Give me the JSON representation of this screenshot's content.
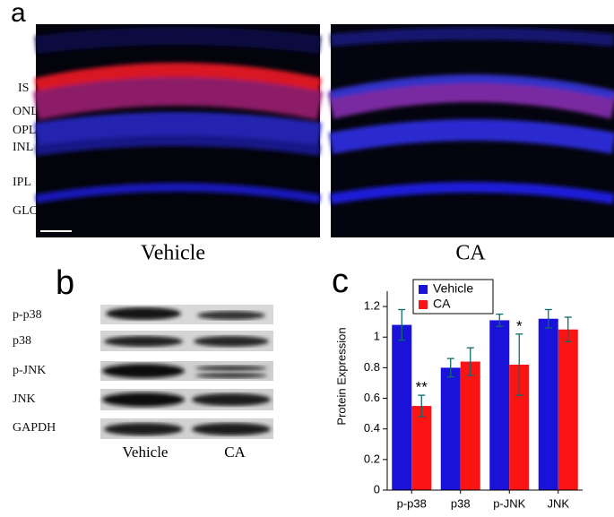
{
  "panel_a": {
    "label": "a",
    "layer_labels": [
      "IS",
      "ONL",
      "OPL",
      "INL",
      "IPL",
      "GLC"
    ],
    "image_labels": [
      "Vehicle",
      "CA"
    ]
  },
  "panel_b": {
    "label": "b",
    "row_labels": [
      "p-p38",
      "p38",
      "p-JNK",
      "JNK",
      "GAPDH"
    ],
    "lane_labels": [
      "Vehicle",
      "CA"
    ]
  },
  "chart_data": {
    "type": "bar",
    "panel_label": "c",
    "y_label": "Protein Expression",
    "categories": [
      "p-p38",
      "p38",
      "p-JNK",
      "JNK"
    ],
    "series": [
      {
        "name": "Vehicle",
        "color": "#1a12d8",
        "values": [
          1.08,
          0.8,
          1.11,
          1.12
        ],
        "errors": [
          0.1,
          0.06,
          0.04,
          0.06
        ]
      },
      {
        "name": "CA",
        "color": "#fb1414",
        "values": [
          0.55,
          0.84,
          0.82,
          1.05
        ],
        "errors": [
          0.07,
          0.09,
          0.2,
          0.08
        ],
        "significance": [
          "**",
          null,
          "*",
          null
        ]
      }
    ],
    "ylim": [
      0,
      1.3
    ],
    "yticks": [
      0,
      0.2,
      0.4,
      0.6,
      0.8,
      1,
      1.2
    ],
    "legend": "upper-left"
  }
}
